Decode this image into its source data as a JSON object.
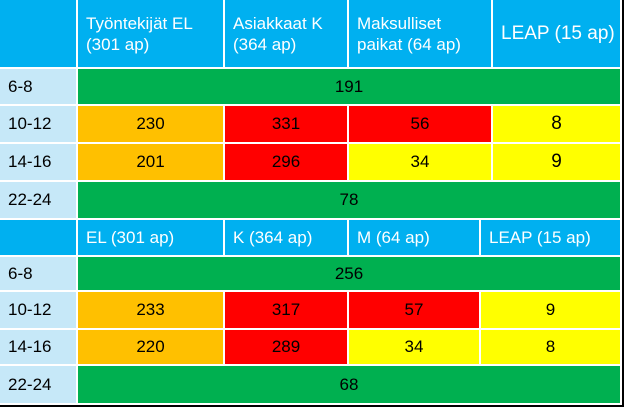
{
  "colors": {
    "header": "#00b0f0",
    "row_label": "#c6e8f8",
    "green": "#00b050",
    "orange": "#ffc000",
    "red": "#ff0000",
    "yellow": "#ffff00"
  },
  "table1": {
    "headers": [
      "Työntekijät EL (301 ap)",
      "Asiakkaat K (364 ap)",
      "Maksulliset paikat (64 ap)",
      "LEAP (15 ap)"
    ],
    "rows": [
      {
        "time": "6-8",
        "merged": "191"
      },
      {
        "time": "10-12",
        "values": [
          "230",
          "331",
          "56",
          "8"
        ]
      },
      {
        "time": "14-16",
        "values": [
          "201",
          "296",
          "34",
          "9"
        ]
      },
      {
        "time": "22-24",
        "merged": "78"
      }
    ]
  },
  "table2": {
    "headers": [
      "EL (301 ap)",
      "K (364 ap)",
      "M (64 ap)",
      "LEAP (15 ap)"
    ],
    "rows": [
      {
        "time": "6-8",
        "merged": "256"
      },
      {
        "time": "10-12",
        "values": [
          "233",
          "317",
          "57",
          "9"
        ]
      },
      {
        "time": "14-16",
        "values": [
          "220",
          "289",
          "34",
          "8"
        ]
      },
      {
        "time": "22-24",
        "merged": "68"
      }
    ]
  }
}
